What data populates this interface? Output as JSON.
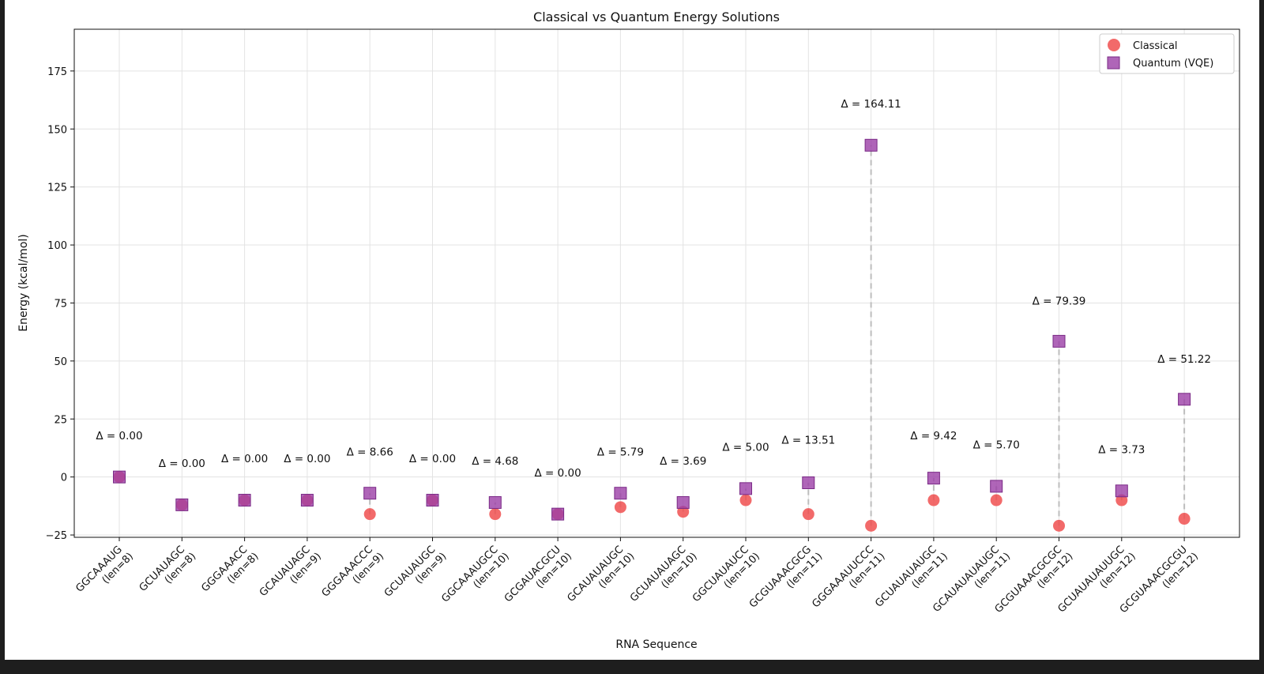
{
  "chart_data": {
    "type": "scatter",
    "title": "Classical vs Quantum Energy Solutions",
    "xlabel": "RNA Sequence",
    "ylabel": "Energy (kcal/mol)",
    "ylim": [
      -26,
      193
    ],
    "yticks": [
      -25,
      0,
      25,
      50,
      75,
      100,
      125,
      150,
      175
    ],
    "grid": true,
    "legend_position": "top-right",
    "categories": [
      [
        "GGCAAAUG",
        "(len=8)"
      ],
      [
        "GCUAUAGC",
        "(len=8)"
      ],
      [
        "GGGAAACC",
        "(len=8)"
      ],
      [
        "GCAUAUAGC",
        "(len=9)"
      ],
      [
        "GGGAAACCC",
        "(len=9)"
      ],
      [
        "GCUAUAUGC",
        "(len=9)"
      ],
      [
        "GGCAAAUGCC",
        "(len=10)"
      ],
      [
        "GCGAUACGCU",
        "(len=10)"
      ],
      [
        "GCAUAUAUGC",
        "(len=10)"
      ],
      [
        "GCUAUAUAGC",
        "(len=10)"
      ],
      [
        "GGCUAUAUCC",
        "(len=10)"
      ],
      [
        "GCGUAAACGCG",
        "(len=11)"
      ],
      [
        "GGGAAAUUCCC",
        "(len=11)"
      ],
      [
        "GCUAUAUAUGC",
        "(len=11)"
      ],
      [
        "GCAUAUAUAUGC",
        "(len=11)"
      ],
      [
        "GCGUAAACGCGC",
        "(len=12)"
      ],
      [
        "GCUAUAUAUUGC",
        "(len=12)"
      ],
      [
        "GCGUAAACGCGU",
        "(len=12)"
      ]
    ],
    "series": [
      {
        "name": "Classical",
        "marker": "circle",
        "color": "#f05050",
        "values": [
          0,
          -12,
          -10,
          -10,
          -16,
          -10,
          -16,
          -16,
          -13,
          -15,
          -10,
          -16,
          -21,
          -10,
          -10,
          -21,
          -10,
          -18
        ]
      },
      {
        "name": "Quantum (VQE)",
        "marker": "square",
        "color": "#9b3fa6",
        "values": [
          0,
          -12,
          -10,
          -10,
          -7,
          -10,
          -11,
          -16,
          -7,
          -11,
          -5,
          -2.5,
          143,
          -0.5,
          -4,
          58.5,
          -6,
          33.5
        ]
      }
    ],
    "annotations": [
      "Δ = 0.00",
      "Δ = 0.00",
      "Δ = 0.00",
      "Δ = 0.00",
      "Δ = 8.66",
      "Δ = 0.00",
      "Δ = 4.68",
      "Δ = 0.00",
      "Δ = 5.79",
      "Δ = 3.69",
      "Δ = 5.00",
      "Δ = 13.51",
      "Δ = 164.11",
      "Δ = 9.42",
      "Δ = 5.70",
      "Δ = 79.39",
      "Δ = 3.73",
      "Δ = 51.22"
    ],
    "annotation_y": [
      18,
      6,
      8,
      8,
      11,
      8,
      7,
      2,
      11,
      7,
      13,
      16,
      161,
      18,
      14,
      76,
      12,
      51
    ]
  }
}
